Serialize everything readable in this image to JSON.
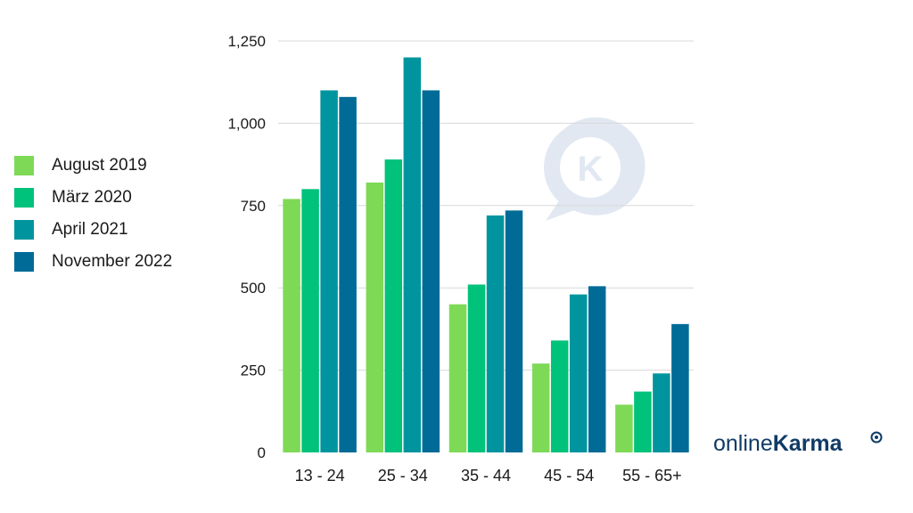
{
  "chart_data": {
    "type": "bar",
    "categories": [
      "13 - 24",
      "25 - 34",
      "35 - 44",
      "45 - 54",
      "55 - 65+"
    ],
    "series": [
      {
        "name": "August 2019",
        "color": "#7ed957",
        "values": [
          770,
          820,
          450,
          270,
          145
        ]
      },
      {
        "name": "März 2020",
        "color": "#00c27a",
        "values": [
          800,
          890,
          510,
          340,
          185
        ]
      },
      {
        "name": "April 2021",
        "color": "#00959e",
        "values": [
          1100,
          1200,
          720,
          480,
          240
        ]
      },
      {
        "name": "November 2022",
        "color": "#006b96",
        "values": [
          1080,
          1100,
          735,
          505,
          390
        ]
      }
    ],
    "yticks": [
      "0",
      "250",
      "500",
      "750",
      "1,000",
      "1,250"
    ],
    "ytick_values": [
      0,
      250,
      500,
      750,
      1000,
      1250
    ],
    "ylim": [
      0,
      1250
    ],
    "grid": true,
    "legend_position": "left"
  },
  "brand": {
    "part1": "online",
    "part2": "Karma",
    "logo_letter": "K"
  },
  "colors": {
    "grid": "#d9d9d9",
    "watermark": "#c9d6e6"
  }
}
